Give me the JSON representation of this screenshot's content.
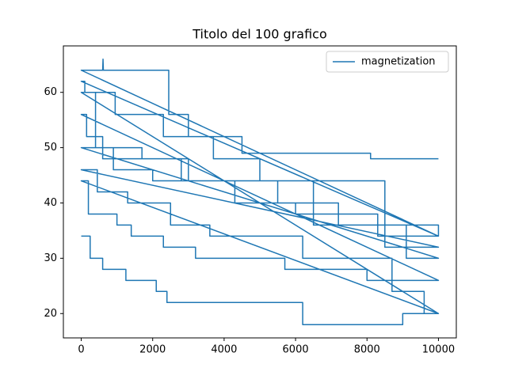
{
  "chart_data": {
    "type": "line",
    "title": "Titolo del 100 grafico",
    "x": [
      0,
      250,
      250,
      600,
      600,
      1250,
      1250,
      2100,
      2100,
      2400,
      2400,
      6200,
      6200,
      9000,
      9000,
      10000,
      0,
      200,
      200,
      1000,
      1000,
      1400,
      1400,
      2300,
      2300,
      3200,
      3200,
      5700,
      5700,
      8000,
      8000,
      10000,
      0,
      150,
      150,
      600,
      600,
      3000,
      3000,
      5500,
      5500,
      7200,
      7200,
      10000,
      10000,
      0,
      100,
      100,
      950,
      950,
      2300,
      2300,
      3700,
      3700,
      5000,
      5000,
      8500,
      8500,
      10000,
      0,
      450,
      450,
      1300,
      1300,
      2500,
      2500,
      3600,
      3600,
      6200,
      6200,
      8700,
      8700,
      9600,
      9600,
      10000,
      0,
      400,
      400,
      1700,
      1700,
      2800,
      2800,
      6500,
      6500,
      9100,
      9100,
      10000,
      0,
      900,
      900,
      2000,
      2000,
      4300,
      4300,
      6000,
      6000,
      8300,
      8300,
      10000,
      0,
      600,
      610,
      620,
      2450,
      2450,
      3000,
      3000,
      4500,
      4500,
      8100,
      8100,
      10000
    ],
    "series": [
      {
        "name": "magnetization",
        "color": "#1f77b4",
        "values": [
          34,
          34,
          30,
          30,
          28,
          28,
          26,
          26,
          24,
          24,
          22,
          22,
          18,
          18,
          20,
          20,
          44,
          44,
          38,
          38,
          36,
          36,
          34,
          34,
          32,
          32,
          30,
          30,
          28,
          28,
          26,
          26,
          56,
          56,
          52,
          52,
          48,
          48,
          44,
          44,
          40,
          40,
          36,
          36,
          34,
          62,
          62,
          60,
          60,
          56,
          56,
          52,
          52,
          48,
          48,
          44,
          44,
          32,
          32,
          46,
          46,
          42,
          42,
          40,
          40,
          36,
          36,
          34,
          34,
          30,
          30,
          24,
          24,
          20,
          20,
          60,
          60,
          50,
          50,
          48,
          48,
          44,
          44,
          36,
          36,
          30,
          30,
          50,
          50,
          46,
          46,
          44,
          44,
          40,
          40,
          38,
          38,
          34,
          34,
          64,
          64,
          66,
          64,
          64,
          56,
          56,
          52,
          52,
          49,
          49,
          48,
          48
        ]
      }
    ],
    "xlim": [
      -500,
      10500
    ],
    "xticks": [
      0,
      2000,
      4000,
      6000,
      8000,
      10000
    ],
    "ylim": [
      15.6,
      68.4
    ],
    "yticks": [
      20,
      30,
      40,
      50,
      60
    ],
    "grid": false,
    "legend": "upper right"
  }
}
